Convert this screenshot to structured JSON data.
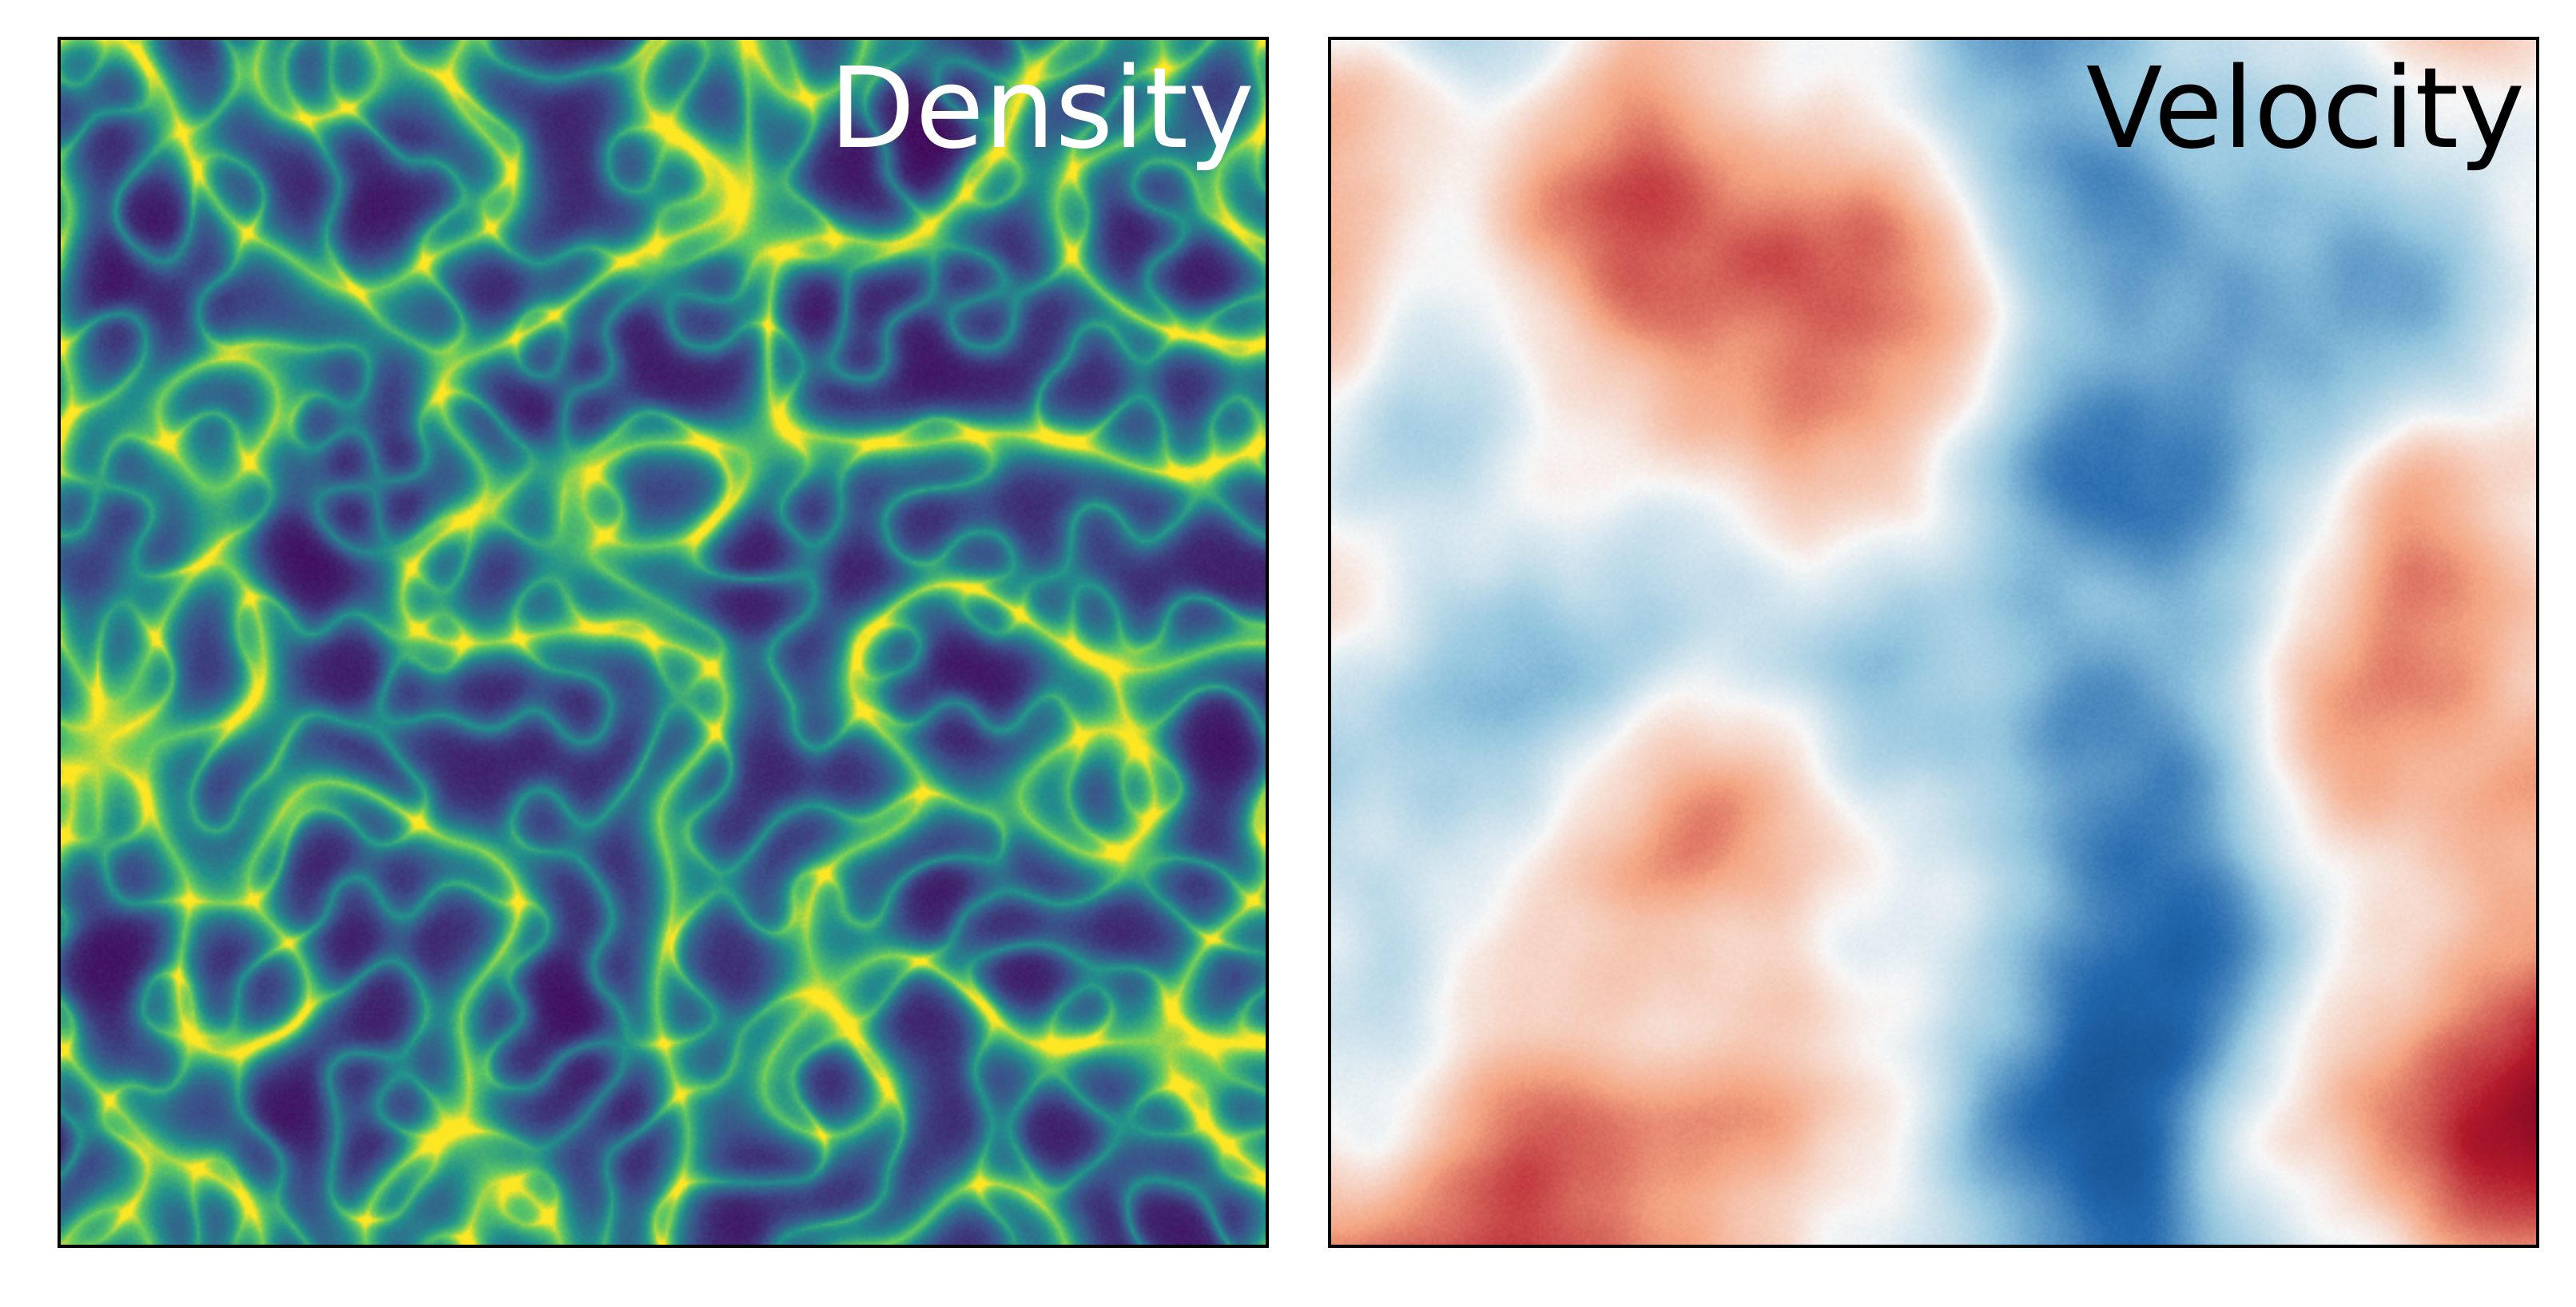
{
  "panels": [
    {
      "label": "Density",
      "label_color": "#ffffff",
      "colormap": "viridis",
      "colors": [
        "#440154",
        "#3b528b",
        "#21908c",
        "#5dc863",
        "#fde725"
      ]
    },
    {
      "label": "Velocity",
      "label_color": "#000000",
      "colormap": "RdBu_r",
      "colors": [
        "#053061",
        "#2166ac",
        "#92c5de",
        "#f7f7f7",
        "#f4a582",
        "#b2182b",
        "#67001f"
      ]
    }
  ]
}
